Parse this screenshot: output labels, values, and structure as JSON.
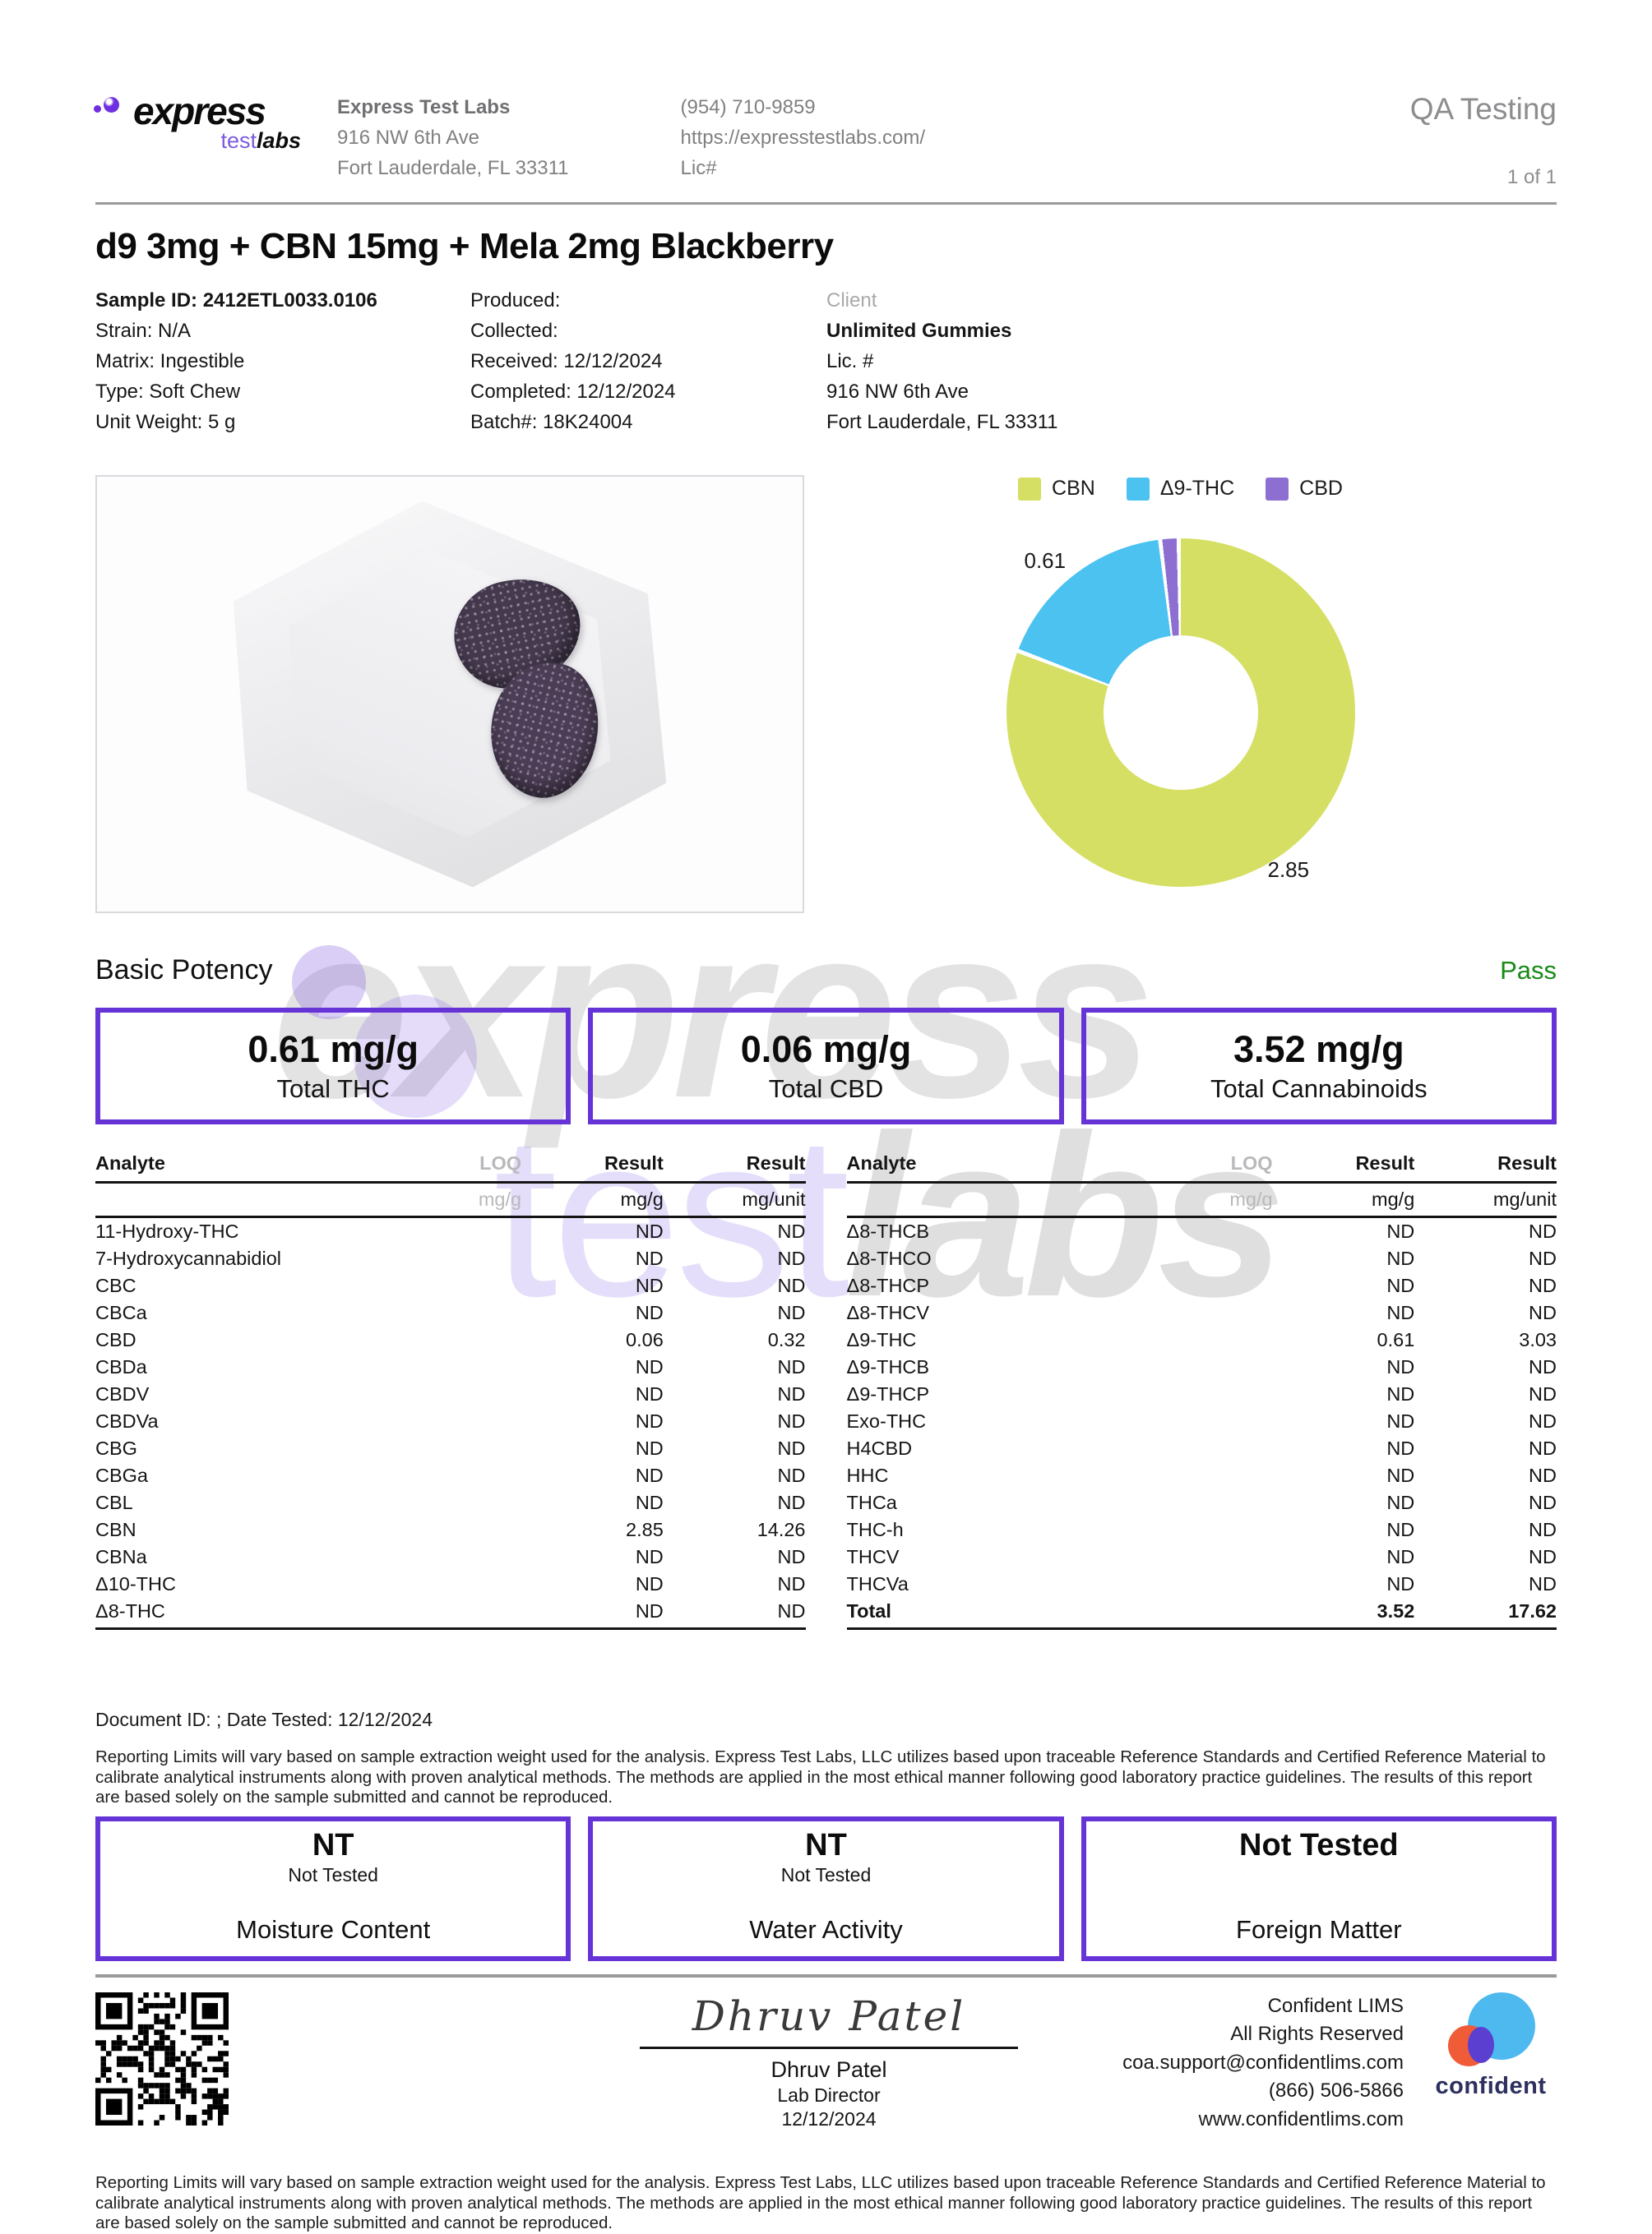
{
  "theme": {
    "accent": "#6633d6",
    "pass_green": "#178a17",
    "divider_gray": "#9a9a9d"
  },
  "header": {
    "logo_express": "express",
    "logo_test": "test",
    "logo_labs": "labs",
    "lab_name": "Express Test Labs",
    "address_line1": "916 NW 6th Ave",
    "address_line2": "Fort Lauderdale, FL 33311",
    "phone": "(954) 710-9859",
    "website": "https://expresstestlabs.com/",
    "license": "Lic#",
    "report_type": "QA Testing",
    "page_indicator": "1 of 1"
  },
  "sample": {
    "title": "d9 3mg + CBN 15mg + Mela 2mg Blackberry",
    "sample_id": "Sample ID: 2412ETL0033.0106",
    "strain": "Strain: N/A",
    "matrix": "Matrix: Ingestible",
    "type": "Type: Soft Chew",
    "unit_weight": "Unit Weight: 5 g",
    "produced": "Produced:",
    "collected": "Collected:",
    "received": "Received: 12/12/2024",
    "completed": "Completed: 12/12/2024",
    "batch": "Batch#: 18K24004",
    "client_label": "Client",
    "client_name": "Unlimited Gummies",
    "client_lic": "Lic. #",
    "client_address1": "916 NW 6th Ave",
    "client_address2": "Fort Lauderdale, FL 33311"
  },
  "chart_data": {
    "type": "pie",
    "donut": true,
    "start_angle_deg": 0,
    "direction": "clockwise",
    "legend_position": "top",
    "slices": [
      {
        "label": "CBN",
        "value": 2.85,
        "color": "#d5df63"
      },
      {
        "label": "Δ9-THC",
        "value": 0.61,
        "color": "#4cc2f1"
      },
      {
        "label": "CBD",
        "value": 0.06,
        "color": "#8d6fd1"
      }
    ],
    "callout_labels": [
      {
        "text": "0.61",
        "slice": "Δ9-THC"
      },
      {
        "text": "2.85",
        "slice": "CBN"
      }
    ]
  },
  "potency": {
    "section_title": "Basic Potency",
    "status": "Pass",
    "boxes": [
      {
        "value": "0.61 mg/g",
        "label": "Total THC"
      },
      {
        "value": "0.06 mg/g",
        "label": "Total CBD"
      },
      {
        "value": "3.52 mg/g",
        "label": "Total Cannabinoids"
      }
    ]
  },
  "tables": {
    "headers": {
      "analyte": "Analyte",
      "loq": "LOQ",
      "result1": "Result",
      "result2": "Result"
    },
    "units": {
      "loq": "mg/g",
      "result1": "mg/g",
      "result2": "mg/unit"
    },
    "left_rows": [
      {
        "analyte": "11-Hydroxy-THC",
        "loq": "",
        "r1": "ND",
        "r2": "ND"
      },
      {
        "analyte": "7-Hydroxycannabidiol",
        "loq": "",
        "r1": "ND",
        "r2": "ND"
      },
      {
        "analyte": "CBC",
        "loq": "",
        "r1": "ND",
        "r2": "ND"
      },
      {
        "analyte": "CBCa",
        "loq": "",
        "r1": "ND",
        "r2": "ND"
      },
      {
        "analyte": "CBD",
        "loq": "",
        "r1": "0.06",
        "r2": "0.32"
      },
      {
        "analyte": "CBDa",
        "loq": "",
        "r1": "ND",
        "r2": "ND"
      },
      {
        "analyte": "CBDV",
        "loq": "",
        "r1": "ND",
        "r2": "ND"
      },
      {
        "analyte": "CBDVa",
        "loq": "",
        "r1": "ND",
        "r2": "ND"
      },
      {
        "analyte": "CBG",
        "loq": "",
        "r1": "ND",
        "r2": "ND"
      },
      {
        "analyte": "CBGa",
        "loq": "",
        "r1": "ND",
        "r2": "ND"
      },
      {
        "analyte": "CBL",
        "loq": "",
        "r1": "ND",
        "r2": "ND"
      },
      {
        "analyte": "CBN",
        "loq": "",
        "r1": "2.85",
        "r2": "14.26"
      },
      {
        "analyte": "CBNa",
        "loq": "",
        "r1": "ND",
        "r2": "ND"
      },
      {
        "analyte": "Δ10-THC",
        "loq": "",
        "r1": "ND",
        "r2": "ND"
      },
      {
        "analyte": "Δ8-THC",
        "loq": "",
        "r1": "ND",
        "r2": "ND"
      }
    ],
    "right_rows": [
      {
        "analyte": "Δ8-THCB",
        "loq": "",
        "r1": "ND",
        "r2": "ND"
      },
      {
        "analyte": "Δ8-THCO",
        "loq": "",
        "r1": "ND",
        "r2": "ND"
      },
      {
        "analyte": "Δ8-THCP",
        "loq": "",
        "r1": "ND",
        "r2": "ND"
      },
      {
        "analyte": "Δ8-THCV",
        "loq": "",
        "r1": "ND",
        "r2": "ND"
      },
      {
        "analyte": "Δ9-THC",
        "loq": "",
        "r1": "0.61",
        "r2": "3.03"
      },
      {
        "analyte": "Δ9-THCB",
        "loq": "",
        "r1": "ND",
        "r2": "ND"
      },
      {
        "analyte": "Δ9-THCP",
        "loq": "",
        "r1": "ND",
        "r2": "ND"
      },
      {
        "analyte": "Exo-THC",
        "loq": "",
        "r1": "ND",
        "r2": "ND"
      },
      {
        "analyte": "H4CBD",
        "loq": "",
        "r1": "ND",
        "r2": "ND"
      },
      {
        "analyte": "HHC",
        "loq": "",
        "r1": "ND",
        "r2": "ND"
      },
      {
        "analyte": "THCa",
        "loq": "",
        "r1": "ND",
        "r2": "ND"
      },
      {
        "analyte": "THC-h",
        "loq": "",
        "r1": "ND",
        "r2": "ND"
      },
      {
        "analyte": "THCV",
        "loq": "",
        "r1": "ND",
        "r2": "ND"
      },
      {
        "analyte": "THCVa",
        "loq": "",
        "r1": "ND",
        "r2": "ND"
      },
      {
        "analyte": "Total",
        "loq": "",
        "r1": "3.52",
        "r2": "17.62",
        "bold": true
      }
    ]
  },
  "notes": {
    "document_line": "Document ID: ; Date Tested: 12/12/2024",
    "reporting_limits": "Reporting Limits will vary based on sample extraction weight used for the analysis. Express Test Labs, LLC utilizes based upon traceable Reference Standards and Certified Reference Material to calibrate analytical instruments along with proven analytical methods. The methods are applied in the most ethical manner following good laboratory practice guidelines. The results of this report are based solely on the sample submitted and cannot be reproduced."
  },
  "nt_boxes": [
    {
      "value": "NT",
      "sub": "Not Tested",
      "label": "Moisture Content"
    },
    {
      "value": "NT",
      "sub": "Not Tested",
      "label": "Water Activity"
    },
    {
      "value": "Not Tested",
      "sub": "",
      "label": "Foreign Matter"
    }
  ],
  "footer": {
    "signature_script": "Dhruv Patel",
    "signer_name": "Dhruv Patel",
    "signer_title": "Lab Director",
    "signature_date": "12/12/2024",
    "lims_line1": "Confident LIMS",
    "lims_line2": "All Rights Reserved",
    "lims_line3": "coa.support@confidentlims.com",
    "lims_line4": "(866) 506-5866",
    "lims_line5": "www.confidentlims.com",
    "lims_brand": "confident"
  },
  "watermark": {
    "line1": "express",
    "line2_test": "test",
    "line2_labs": "labs"
  }
}
